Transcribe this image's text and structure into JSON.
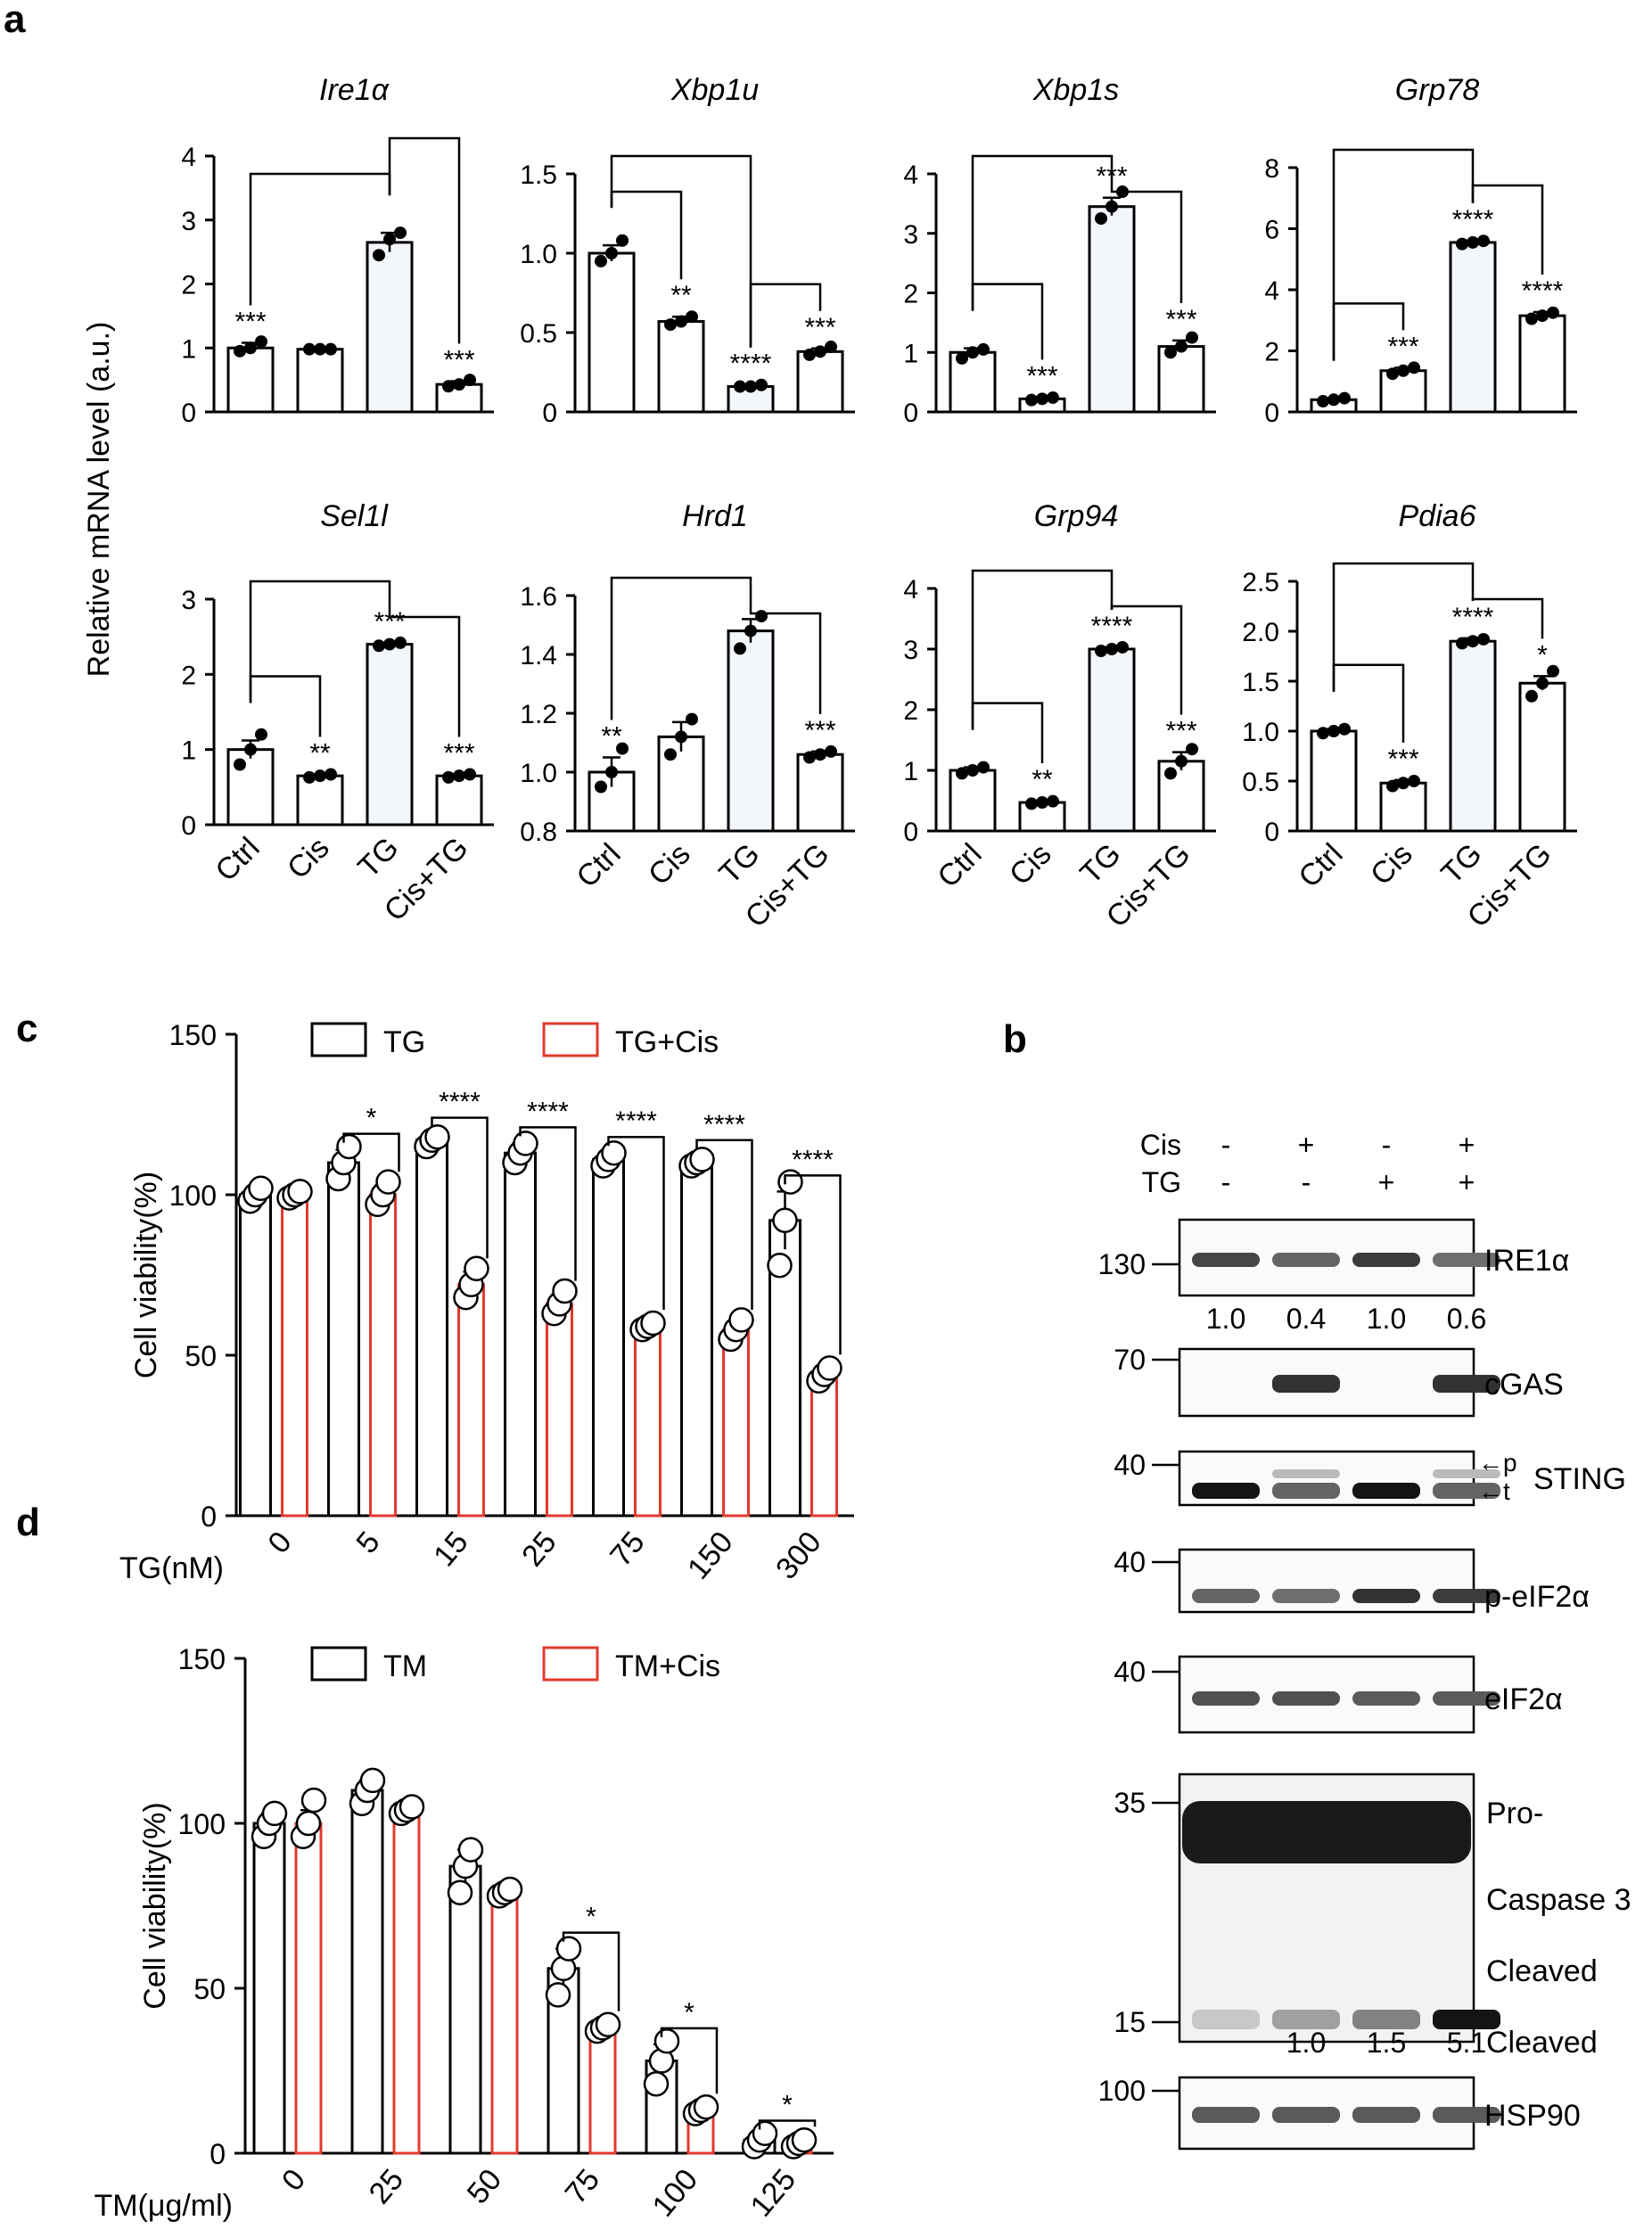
{
  "panels": {
    "a": "a",
    "b": "b",
    "c": "c",
    "d": "d"
  },
  "y_axis_a": "Relative mRNA level (a.u.)",
  "groups": [
    "Ctrl",
    "Cis",
    "TG",
    "Cis+TG"
  ],
  "colors": {
    "tg": "#000000",
    "cis": "#e23a2e",
    "bar_fill": "#ffffff",
    "tg_bar_fill": "#f3f6fb"
  },
  "chart_data": [
    {
      "id": "ire1a",
      "type": "bar",
      "title": "Ire1α",
      "categories": [
        "Ctrl",
        "Cis",
        "TG",
        "Cis+TG"
      ],
      "values": [
        1.0,
        0.98,
        2.65,
        0.43
      ],
      "errors": [
        0.08,
        0.02,
        0.15,
        0.05
      ],
      "points": [
        [
          0.95,
          1.0,
          1.1
        ],
        [
          0.98,
          0.98,
          0.98
        ],
        [
          2.45,
          2.7,
          2.8
        ],
        [
          0.4,
          0.43,
          0.5
        ]
      ],
      "sig": [
        "***",
        "",
        "",
        "***"
      ],
      "ylim": [
        0,
        4
      ],
      "ticks": [
        "0",
        "1",
        "2",
        "3",
        "4"
      ],
      "brackets": [
        [
          0,
          2,
          1
        ],
        [
          2,
          3,
          0
        ]
      ],
      "show_xticks": false
    },
    {
      "id": "xbp1u",
      "type": "bar",
      "title": "Xbp1u",
      "categories": [
        "Ctrl",
        "Cis",
        "TG",
        "Cis+TG"
      ],
      "values": [
        1.0,
        0.57,
        0.16,
        0.38
      ],
      "errors": [
        0.05,
        0.03,
        0.01,
        0.02
      ],
      "points": [
        [
          0.95,
          1.0,
          1.08
        ],
        [
          0.55,
          0.57,
          0.6
        ],
        [
          0.16,
          0.16,
          0.17
        ],
        [
          0.36,
          0.38,
          0.41
        ]
      ],
      "sig": [
        "",
        "**",
        "****",
        "***"
      ],
      "ylim": [
        0,
        1.5
      ],
      "ticks": [
        "0",
        "0.5",
        "1.0",
        "1.5"
      ],
      "brackets": [
        [
          0,
          1,
          1
        ],
        [
          0,
          2,
          0
        ],
        [
          2,
          3,
          1
        ]
      ],
      "show_xticks": false
    },
    {
      "id": "xbp1s",
      "type": "bar",
      "title": "Xbp1s",
      "categories": [
        "Ctrl",
        "Cis",
        "TG",
        "Cis+TG"
      ],
      "values": [
        1.0,
        0.22,
        3.45,
        1.1
      ],
      "errors": [
        0.07,
        0.03,
        0.15,
        0.1
      ],
      "points": [
        [
          0.9,
          1.0,
          1.05
        ],
        [
          0.2,
          0.22,
          0.24
        ],
        [
          3.25,
          3.45,
          3.7
        ],
        [
          1.0,
          1.1,
          1.25
        ]
      ],
      "sig": [
        "",
        "***",
        "***",
        "***"
      ],
      "ylim": [
        0,
        4
      ],
      "ticks": [
        "0",
        "1",
        "2",
        "3",
        "4"
      ],
      "brackets": [
        [
          0,
          1,
          1
        ],
        [
          0,
          2,
          0
        ],
        [
          2,
          3,
          1
        ]
      ],
      "show_xticks": false
    },
    {
      "id": "grp78",
      "type": "bar",
      "title": "Grp78",
      "categories": [
        "Ctrl",
        "Cis",
        "TG",
        "Cis+TG"
      ],
      "values": [
        0.4,
        1.35,
        5.55,
        3.15
      ],
      "errors": [
        0.05,
        0.1,
        0.06,
        0.12
      ],
      "points": [
        [
          0.35,
          0.4,
          0.45
        ],
        [
          1.25,
          1.35,
          1.45
        ],
        [
          5.5,
          5.55,
          5.6
        ],
        [
          3.05,
          3.15,
          3.25
        ]
      ],
      "sig": [
        "",
        "***",
        "****",
        "****"
      ],
      "ylim": [
        0,
        8
      ],
      "ticks": [
        "0",
        "2",
        "4",
        "6",
        "8"
      ],
      "brackets": [
        [
          0,
          1,
          1
        ],
        [
          0,
          2,
          0
        ],
        [
          2,
          3,
          1
        ]
      ],
      "show_xticks": false
    },
    {
      "id": "sel1l",
      "type": "bar",
      "title": "Sel1l",
      "categories": [
        "Ctrl",
        "Cis",
        "TG",
        "Cis+TG"
      ],
      "values": [
        1.0,
        0.65,
        2.4,
        0.65
      ],
      "errors": [
        0.12,
        0.02,
        0.02,
        0.02
      ],
      "points": [
        [
          0.8,
          1.0,
          1.2
        ],
        [
          0.63,
          0.65,
          0.67
        ],
        [
          2.38,
          2.4,
          2.42
        ],
        [
          0.63,
          0.65,
          0.67
        ]
      ],
      "sig": [
        "",
        "**",
        "***",
        "***"
      ],
      "ylim": [
        0,
        3
      ],
      "ticks": [
        "0",
        "1",
        "2",
        "3"
      ],
      "brackets": [
        [
          0,
          1,
          1
        ],
        [
          0,
          2,
          0
        ],
        [
          2,
          3,
          1
        ]
      ],
      "show_xticks": true
    },
    {
      "id": "hrd1",
      "type": "bar",
      "title": "Hrd1",
      "categories": [
        "Ctrl",
        "Cis",
        "TG",
        "Cis+TG"
      ],
      "values": [
        1.0,
        1.12,
        1.48,
        1.06
      ],
      "errors": [
        0.05,
        0.05,
        0.04,
        0.01
      ],
      "points": [
        [
          0.95,
          1.0,
          1.08
        ],
        [
          1.06,
          1.12,
          1.18
        ],
        [
          1.42,
          1.48,
          1.53
        ],
        [
          1.05,
          1.06,
          1.07
        ]
      ],
      "sig": [
        "**",
        "",
        "",
        "***"
      ],
      "ylim": [
        0.8,
        1.6
      ],
      "ticks": [
        "0.8",
        "1.0",
        "1.2",
        "1.4",
        "1.6"
      ],
      "brackets": [
        [
          0,
          2,
          0
        ],
        [
          2,
          3,
          1
        ]
      ],
      "show_xticks": true
    },
    {
      "id": "grp94",
      "type": "bar",
      "title": "Grp94",
      "categories": [
        "Ctrl",
        "Cis",
        "TG",
        "Cis+TG"
      ],
      "values": [
        1.0,
        0.47,
        3.0,
        1.15
      ],
      "errors": [
        0.05,
        0.03,
        0.03,
        0.15
      ],
      "points": [
        [
          0.95,
          1.0,
          1.05
        ],
        [
          0.45,
          0.47,
          0.49
        ],
        [
          2.97,
          3.0,
          3.03
        ],
        [
          0.95,
          1.15,
          1.35
        ]
      ],
      "sig": [
        "",
        "**",
        "****",
        "***"
      ],
      "ylim": [
        0,
        4
      ],
      "ticks": [
        "0",
        "1",
        "2",
        "3",
        "4"
      ],
      "brackets": [
        [
          0,
          1,
          1
        ],
        [
          0,
          2,
          0
        ],
        [
          2,
          3,
          1
        ]
      ],
      "show_xticks": true
    },
    {
      "id": "pdia6",
      "type": "bar",
      "title": "Pdia6",
      "categories": [
        "Ctrl",
        "Cis",
        "TG",
        "Cis+TG"
      ],
      "values": [
        1.0,
        0.48,
        1.9,
        1.48
      ],
      "errors": [
        0.02,
        0.03,
        0.03,
        0.07
      ],
      "points": [
        [
          0.98,
          1.0,
          1.02
        ],
        [
          0.45,
          0.48,
          0.5
        ],
        [
          1.88,
          1.9,
          1.92
        ],
        [
          1.35,
          1.48,
          1.6
        ]
      ],
      "sig": [
        "",
        "***",
        "****",
        "*"
      ],
      "ylim": [
        0,
        2.5
      ],
      "ticks": [
        "0",
        "0.5",
        "1.0",
        "1.5",
        "2.0",
        "2.5"
      ],
      "brackets": [
        [
          0,
          1,
          1
        ],
        [
          0,
          2,
          0
        ],
        [
          2,
          3,
          1
        ]
      ],
      "show_xticks": true
    },
    {
      "id": "c",
      "type": "bar",
      "ylabel": "Cell viability(%)",
      "xlabel": "TG(nM)",
      "categories": [
        "0",
        "5",
        "15",
        "25",
        "75",
        "150",
        "300"
      ],
      "ylim": [
        0,
        150
      ],
      "ticks": [
        "0",
        "50",
        "100",
        "150"
      ],
      "legend": [
        "TG",
        "TG+Cis"
      ],
      "series": [
        {
          "name": "TG",
          "values": [
            100,
            110,
            117,
            113,
            111,
            110,
            92
          ],
          "errors": [
            2,
            4,
            2,
            3,
            2,
            2,
            9
          ],
          "points": [
            [
              98,
              100,
              102
            ],
            [
              105,
              110,
              115
            ],
            [
              115,
              117,
              118
            ],
            [
              110,
              113,
              116
            ],
            [
              109,
              111,
              113
            ],
            [
              109,
              110,
              111
            ],
            [
              78,
              92,
              104
            ]
          ]
        },
        {
          "name": "TG+Cis",
          "values": [
            100,
            100,
            72,
            66,
            59,
            58,
            44
          ],
          "errors": [
            1,
            3,
            4,
            3,
            1,
            2,
            2
          ],
          "points": [
            [
              99,
              100,
              101
            ],
            [
              97,
              100,
              104
            ],
            [
              68,
              72,
              77
            ],
            [
              63,
              66,
              70
            ],
            [
              58,
              59,
              60
            ],
            [
              55,
              58,
              61
            ],
            [
              42,
              44,
              46
            ]
          ]
        }
      ],
      "sig": [
        "",
        "*",
        "****",
        "****",
        "****",
        "****",
        "****"
      ]
    },
    {
      "id": "d",
      "type": "bar",
      "ylabel": "Cell viability(%)",
      "xlabel": "TM(μg/ml)",
      "categories": [
        "0",
        "25",
        "50",
        "75",
        "100",
        "125"
      ],
      "ylim": [
        0,
        150
      ],
      "ticks": [
        "0",
        "50",
        "100",
        "150"
      ],
      "legend": [
        "TM",
        "TM+Cis"
      ],
      "series": [
        {
          "name": "TM",
          "values": [
            100,
            110,
            87,
            56,
            28,
            4
          ],
          "errors": [
            3,
            3,
            5,
            6,
            5,
            1
          ],
          "points": [
            [
              96,
              100,
              103
            ],
            [
              106,
              110,
              113
            ],
            [
              79,
              87,
              92
            ],
            [
              48,
              56,
              62
            ],
            [
              21,
              28,
              34
            ],
            [
              2,
              4,
              6
            ]
          ]
        },
        {
          "name": "TM+Cis",
          "values": [
            100,
            104,
            79,
            38,
            13,
            3
          ],
          "errors": [
            4,
            1,
            1,
            1,
            1,
            1
          ],
          "points": [
            [
              96,
              100,
              107
            ],
            [
              103,
              104,
              105
            ],
            [
              78,
              79,
              80
            ],
            [
              37,
              38,
              39
            ],
            [
              12,
              13,
              14
            ],
            [
              2,
              3,
              4
            ]
          ]
        }
      ],
      "sig": [
        "",
        "",
        "",
        "*",
        "*",
        "*"
      ]
    }
  ],
  "western": {
    "lane_rows": [
      {
        "label": "Cis",
        "marks": [
          "-",
          "+",
          "-",
          "+"
        ]
      },
      {
        "label": "TG",
        "marks": [
          "-",
          "-",
          "+",
          "+"
        ]
      }
    ],
    "blots": [
      {
        "id": "ire1a",
        "name": "IRE1α",
        "mw": [
          "130"
        ],
        "intensity": [
          0.75,
          0.6,
          0.8,
          0.55
        ]
      },
      {
        "id": "cgas",
        "name": "cGAS",
        "mw": [
          "70"
        ],
        "intensity": [
          0.0,
          0.85,
          0.0,
          0.85
        ]
      },
      {
        "id": "sting",
        "name": "STING",
        "mw": [
          "40"
        ],
        "arrows": [
          "←p",
          "←t"
        ],
        "intensity": [
          1.0,
          0.6,
          1.0,
          0.6
        ]
      },
      {
        "id": "peif2a",
        "name": "p-eIF2α",
        "mw": [
          "40"
        ],
        "intensity": [
          0.6,
          0.55,
          0.85,
          0.8
        ]
      },
      {
        "id": "eif2a",
        "name": "eIF2α",
        "mw": [
          "40"
        ],
        "intensity": [
          0.7,
          0.7,
          0.65,
          0.65
        ]
      },
      {
        "id": "casp3",
        "name": "Caspase 3",
        "mw": [
          "35",
          "15"
        ],
        "labels": [
          "Pro-",
          "Caspase 3",
          "Cleaved"
        ],
        "intensity": [
          0.1,
          0.3,
          0.45,
          1.0
        ]
      },
      {
        "id": "hsp90",
        "name": "HSP90",
        "mw": [
          "100"
        ],
        "intensity": [
          0.65,
          0.65,
          0.65,
          0.65
        ]
      }
    ],
    "quant_ire1a": [
      "1.0",
      "0.4",
      "1.0",
      "0.6"
    ],
    "quant_cleaved": [
      "1.0",
      "1.5",
      "5.1"
    ],
    "quant_cleaved_label": "Cleaved"
  }
}
